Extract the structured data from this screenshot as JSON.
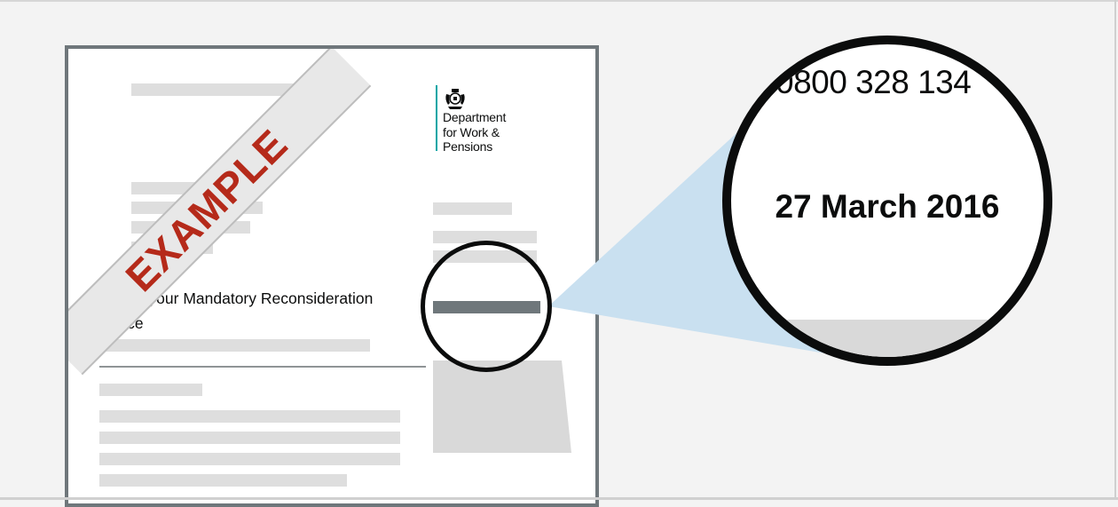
{
  "letter": {
    "logo": {
      "crest_icon": "royal-coat-of-arms-icon",
      "lines": [
        "Department",
        "for Work &",
        "Pensions"
      ],
      "accent_color": "#00a5a5"
    },
    "heading": "This is your Mandatory Reconsideration Notice",
    "stamp": {
      "text": "EXAMPLE",
      "color": "#b52a1a"
    }
  },
  "magnifier": {
    "phone_partial": "0800 328 134",
    "date": "27 March 2016",
    "connector_color": "#c9e0f0"
  }
}
